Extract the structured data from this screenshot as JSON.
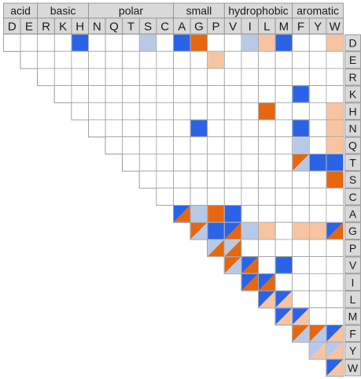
{
  "colors": {
    "strong_blue": "#2b63e6",
    "strong_orange": "#e5670f",
    "light_blue": "#b7c9e6",
    "light_orange": "#f7c3a0",
    "header_fill": "#d9d9d9",
    "grid_line": "#a0a0a0"
  },
  "residues": [
    "D",
    "E",
    "R",
    "K",
    "H",
    "N",
    "Q",
    "T",
    "S",
    "C",
    "A",
    "G",
    "P",
    "V",
    "I",
    "L",
    "M",
    "F",
    "Y",
    "W"
  ],
  "groups": [
    {
      "label": "acid",
      "start": 0,
      "end": 1
    },
    {
      "label": "basic",
      "start": 2,
      "end": 4
    },
    {
      "label": "polar",
      "start": 5,
      "end": 9
    },
    {
      "label": "small",
      "start": 10,
      "end": 12
    },
    {
      "label": "hydrophobic",
      "start": 13,
      "end": 16
    },
    {
      "label": "aromatic",
      "start": 17,
      "end": 19
    }
  ],
  "legend_codes": {
    "0": "empty",
    "1": "strong blue",
    "2": "strong orange",
    "3": "light blue",
    "4": "light orange",
    "5": "blue / orange split",
    "6": "light blue / orange split",
    "7": "blue / light orange split",
    "8": "orange / light blue split",
    "9": "light blue / light orange split"
  },
  "matrix": [
    "00001000301200341004",
    "0000000000040000000",
    "000000000000000000",
    "00000000000000100",
    "0000000000020004",
    "000000100000104",
    "00000000000304",
    "0000000000811",
    "000000000002",
    "00000000000",
    "5321000000",
    "815340445",
    "66000000",
    "8501000",
    "550000",
    "77000",
    "7700",
    "887",
    "99",
    "7"
  ]
}
